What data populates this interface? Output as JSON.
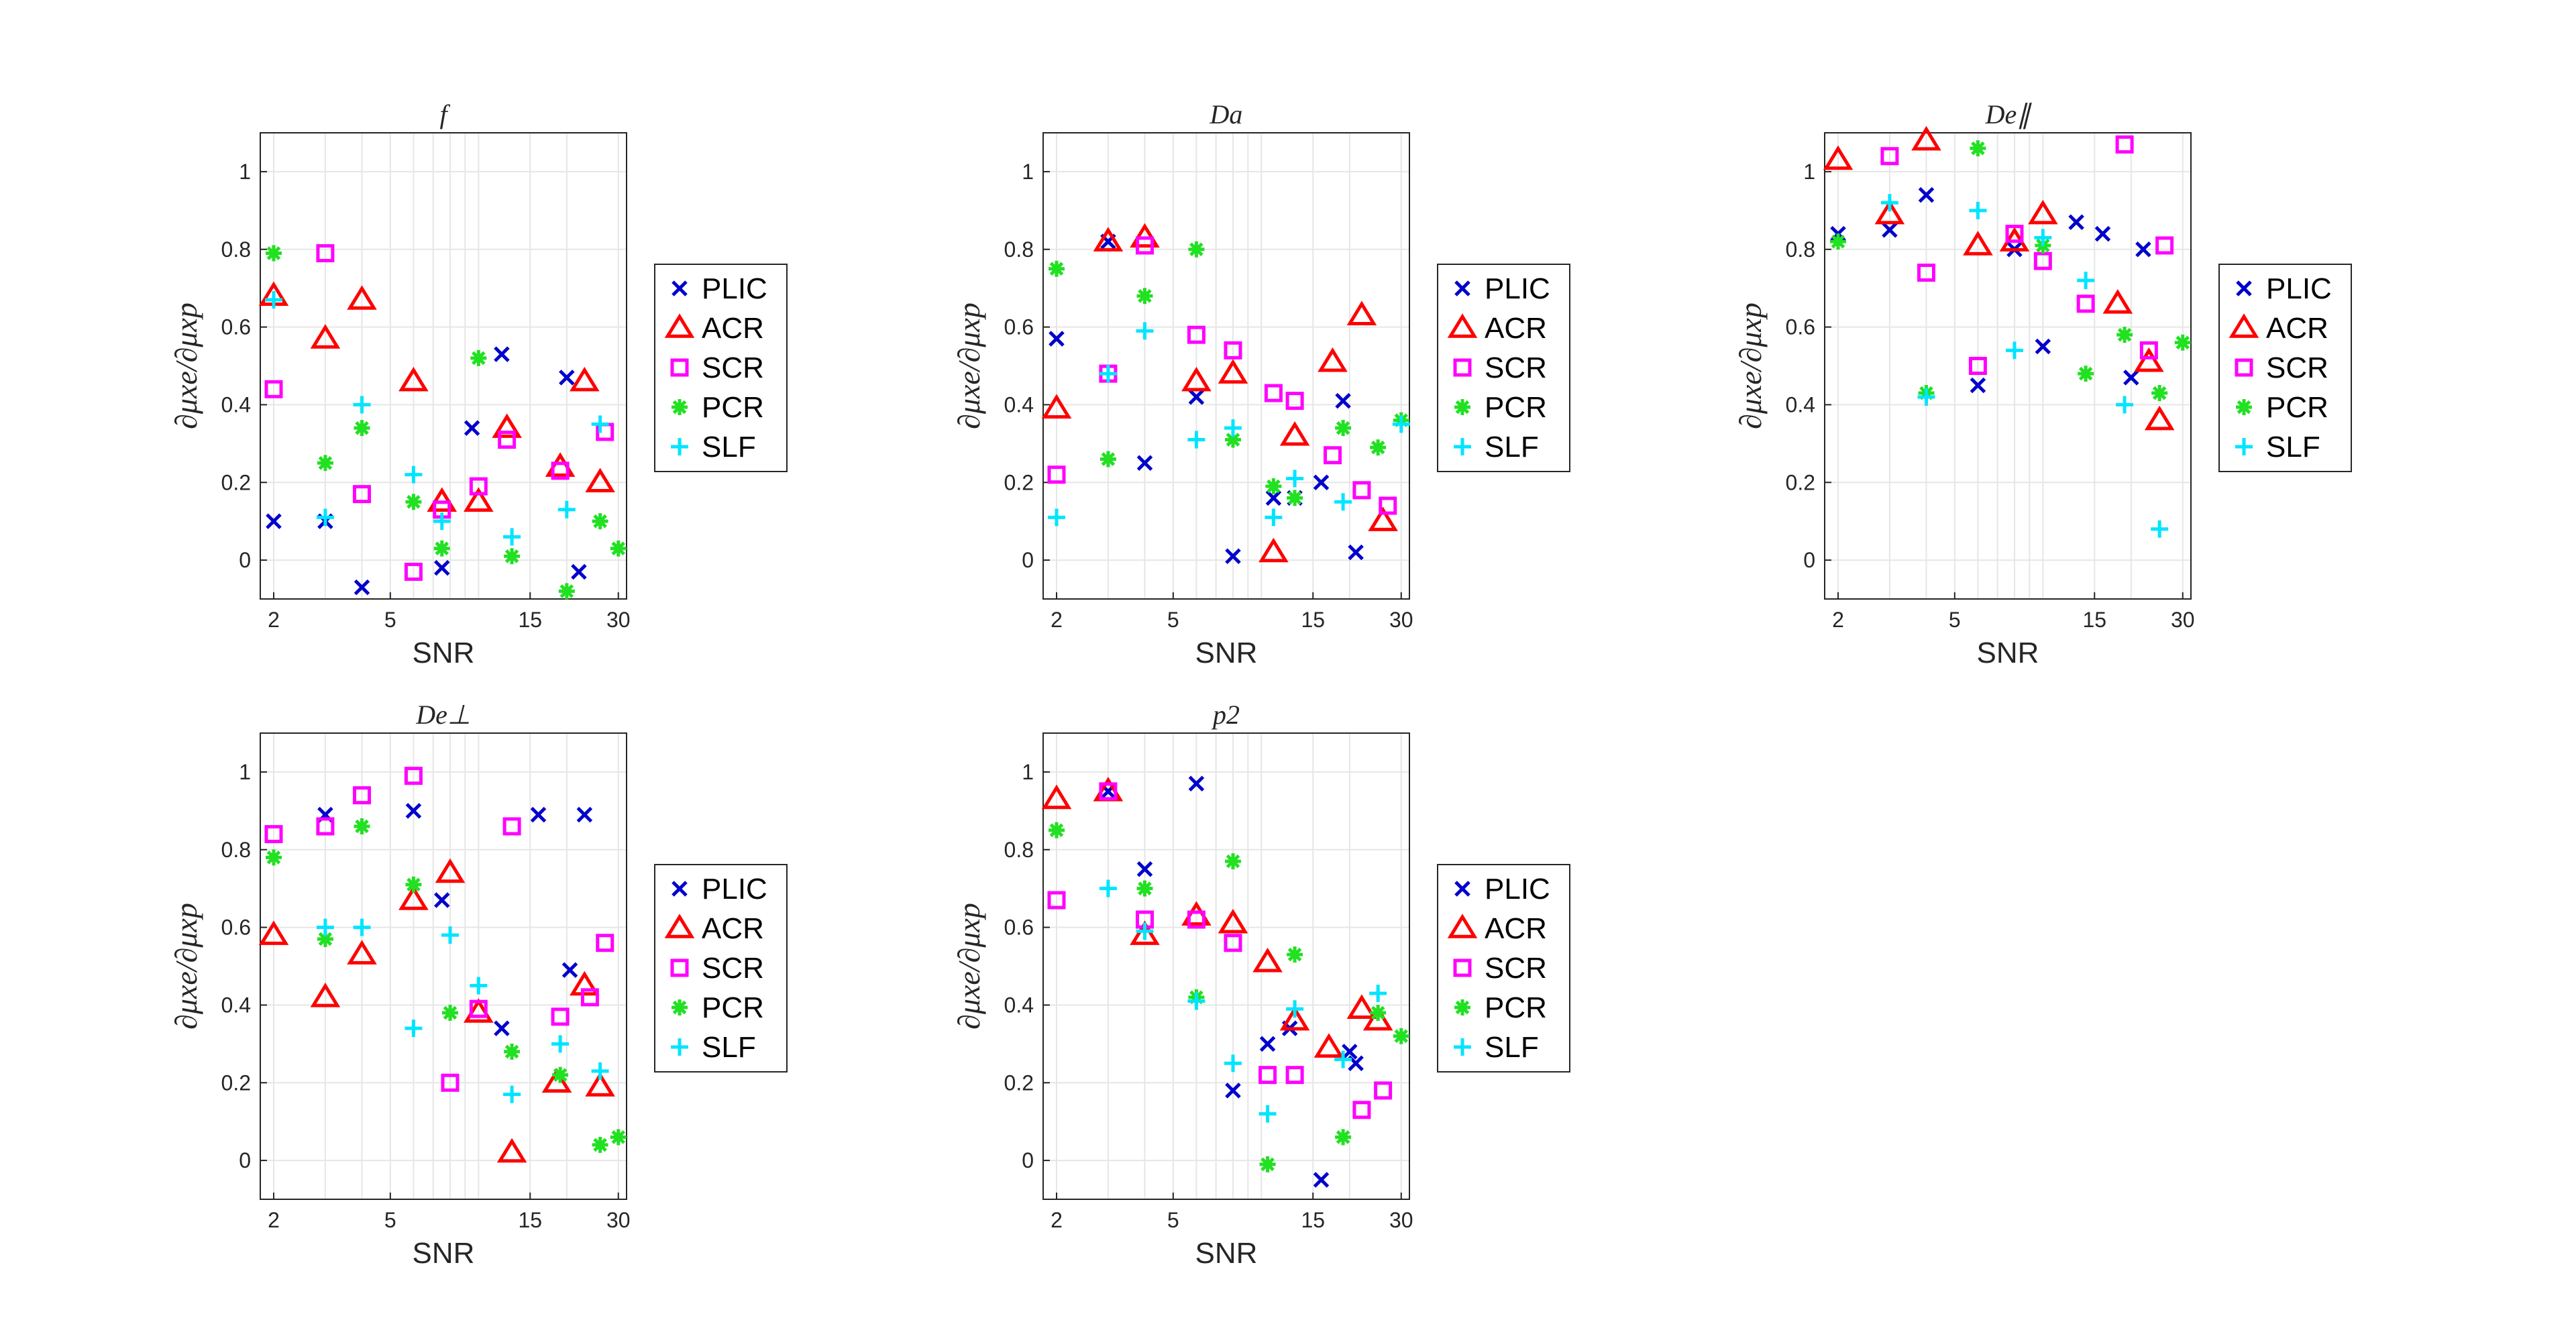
{
  "chart_data": [
    {
      "type": "scatter",
      "title": "f",
      "xlabel": "SNR",
      "ylabel": "∂μxe/∂μxp",
      "xscale": "log",
      "xlim": [
        1.8,
        32
      ],
      "ylim": [
        -0.1,
        1.1
      ],
      "xticks": [
        2,
        5,
        15,
        30
      ],
      "yticks": [
        0,
        0.2,
        0.4,
        0.6,
        0.8,
        1
      ],
      "grid": true,
      "legend_position": "right",
      "series": [
        {
          "name": "PLIC",
          "points": [
            [
              2,
              0.1
            ],
            [
              3,
              0.1
            ],
            [
              4,
              -0.07
            ],
            [
              7.5,
              -0.02
            ],
            [
              9.5,
              0.34
            ],
            [
              12,
              0.53
            ],
            [
              20,
              0.47
            ],
            [
              22,
              -0.03
            ]
          ]
        },
        {
          "name": "ACR",
          "points": [
            [
              2,
              0.68
            ],
            [
              3,
              0.57
            ],
            [
              4,
              0.67
            ],
            [
              6,
              0.46
            ],
            [
              7.5,
              0.15
            ],
            [
              10,
              0.15
            ],
            [
              12.5,
              0.34
            ],
            [
              19,
              0.24
            ],
            [
              23,
              0.46
            ],
            [
              26,
              0.2
            ]
          ]
        },
        {
          "name": "SCR",
          "points": [
            [
              2,
              0.44
            ],
            [
              3,
              0.79
            ],
            [
              4,
              0.17
            ],
            [
              6,
              -0.03
            ],
            [
              7.5,
              0.13
            ],
            [
              10,
              0.19
            ],
            [
              12.5,
              0.31
            ],
            [
              19,
              0.23
            ],
            [
              27,
              0.33
            ]
          ]
        },
        {
          "name": "PCR",
          "points": [
            [
              2,
              0.79
            ],
            [
              3,
              0.25
            ],
            [
              4,
              0.34
            ],
            [
              6,
              0.15
            ],
            [
              7.5,
              0.03
            ],
            [
              10,
              0.52
            ],
            [
              13,
              0.01
            ],
            [
              20,
              -0.08
            ],
            [
              26,
              0.1
            ],
            [
              30,
              0.03
            ]
          ]
        },
        {
          "name": "SLF",
          "points": [
            [
              2,
              0.67
            ],
            [
              3,
              0.11
            ],
            [
              4,
              0.4
            ],
            [
              6,
              0.22
            ],
            [
              7.5,
              0.1
            ],
            [
              13,
              0.06
            ],
            [
              20,
              0.13
            ],
            [
              26,
              0.35
            ]
          ]
        }
      ]
    },
    {
      "type": "scatter",
      "title": "Da",
      "xlabel": "SNR",
      "ylabel": "∂μxe/∂μxp",
      "xscale": "log",
      "xlim": [
        1.8,
        32
      ],
      "ylim": [
        -0.1,
        1.1
      ],
      "xticks": [
        2,
        5,
        15,
        30
      ],
      "yticks": [
        0,
        0.2,
        0.4,
        0.6,
        0.8,
        1
      ],
      "grid": true,
      "legend_position": "right",
      "series": [
        {
          "name": "PLIC",
          "points": [
            [
              2,
              0.57
            ],
            [
              3,
              0.82
            ],
            [
              4,
              0.25
            ],
            [
              6,
              0.42
            ],
            [
              8,
              0.01
            ],
            [
              11,
              0.16
            ],
            [
              13,
              0.16
            ],
            [
              16,
              0.2
            ],
            [
              19,
              0.41
            ],
            [
              21,
              0.02
            ]
          ]
        },
        {
          "name": "ACR",
          "points": [
            [
              2,
              0.39
            ],
            [
              3,
              0.82
            ],
            [
              4,
              0.83
            ],
            [
              6,
              0.46
            ],
            [
              8,
              0.48
            ],
            [
              11,
              0.02
            ],
            [
              13,
              0.32
            ],
            [
              17.5,
              0.51
            ],
            [
              22,
              0.63
            ],
            [
              26,
              0.1
            ]
          ]
        },
        {
          "name": "SCR",
          "points": [
            [
              2,
              0.22
            ],
            [
              3,
              0.48
            ],
            [
              4,
              0.81
            ],
            [
              6,
              0.58
            ],
            [
              8,
              0.54
            ],
            [
              11,
              0.43
            ],
            [
              13,
              0.41
            ],
            [
              17.5,
              0.27
            ],
            [
              22,
              0.18
            ],
            [
              27,
              0.14
            ]
          ]
        },
        {
          "name": "PCR",
          "points": [
            [
              2,
              0.75
            ],
            [
              3,
              0.26
            ],
            [
              4,
              0.68
            ],
            [
              6,
              0.8
            ],
            [
              8,
              0.31
            ],
            [
              11,
              0.19
            ],
            [
              13,
              0.16
            ],
            [
              19,
              0.34
            ],
            [
              25,
              0.29
            ],
            [
              30,
              0.36
            ]
          ]
        },
        {
          "name": "SLF",
          "points": [
            [
              2,
              0.11
            ],
            [
              3,
              0.48
            ],
            [
              4,
              0.59
            ],
            [
              6,
              0.31
            ],
            [
              8,
              0.34
            ],
            [
              11,
              0.11
            ],
            [
              13,
              0.21
            ],
            [
              19,
              0.15
            ],
            [
              30,
              0.35
            ]
          ]
        }
      ]
    },
    {
      "type": "scatter",
      "title": "De∥",
      "xlabel": "SNR",
      "ylabel": "∂μxe/∂μxp",
      "xscale": "log",
      "xlim": [
        1.8,
        32
      ],
      "ylim": [
        -0.1,
        1.1
      ],
      "xticks": [
        2,
        5,
        15,
        30
      ],
      "yticks": [
        0,
        0.2,
        0.4,
        0.6,
        0.8,
        1
      ],
      "grid": true,
      "legend_position": "right",
      "series": [
        {
          "name": "PLIC",
          "points": [
            [
              2,
              0.84
            ],
            [
              3,
              0.85
            ],
            [
              4,
              0.94
            ],
            [
              6,
              0.45
            ],
            [
              8,
              0.8
            ],
            [
              10,
              0.55
            ],
            [
              13,
              0.87
            ],
            [
              16,
              0.84
            ],
            [
              20,
              0.47
            ],
            [
              22,
              0.8
            ]
          ]
        },
        {
          "name": "ACR",
          "points": [
            [
              2,
              1.03
            ],
            [
              3,
              0.89
            ],
            [
              4,
              1.08
            ],
            [
              6,
              0.81
            ],
            [
              8,
              0.82
            ],
            [
              10,
              0.89
            ],
            [
              18,
              0.66
            ],
            [
              23,
              0.51
            ],
            [
              25,
              0.36
            ]
          ]
        },
        {
          "name": "SCR",
          "points": [
            [
              3,
              1.04
            ],
            [
              4,
              0.74
            ],
            [
              6,
              0.5
            ],
            [
              8,
              0.84
            ],
            [
              10,
              0.77
            ],
            [
              14,
              0.66
            ],
            [
              19,
              1.07
            ],
            [
              23,
              0.54
            ],
            [
              26,
              0.81
            ]
          ]
        },
        {
          "name": "PCR",
          "points": [
            [
              2,
              0.82
            ],
            [
              4,
              0.43
            ],
            [
              6,
              1.06
            ],
            [
              10,
              0.81
            ],
            [
              14,
              0.48
            ],
            [
              19,
              0.58
            ],
            [
              25,
              0.43
            ],
            [
              30,
              0.56
            ]
          ]
        },
        {
          "name": "SLF",
          "points": [
            [
              3,
              0.92
            ],
            [
              4,
              0.42
            ],
            [
              6,
              0.9
            ],
            [
              8,
              0.54
            ],
            [
              10,
              0.83
            ],
            [
              14,
              0.72
            ],
            [
              19,
              0.4
            ],
            [
              25,
              0.08
            ]
          ]
        }
      ]
    },
    {
      "type": "scatter",
      "title": "De⊥",
      "xlabel": "SNR",
      "ylabel": "∂μxe/∂μxp",
      "xscale": "log",
      "xlim": [
        1.8,
        32
      ],
      "ylim": [
        -0.1,
        1.1
      ],
      "xticks": [
        2,
        5,
        15,
        30
      ],
      "yticks": [
        0,
        0.2,
        0.4,
        0.6,
        0.8,
        1
      ],
      "grid": true,
      "legend_position": "right",
      "series": [
        {
          "name": "PLIC",
          "points": [
            [
              3,
              0.89
            ],
            [
              6,
              0.9
            ],
            [
              7.5,
              0.67
            ],
            [
              12,
              0.34
            ],
            [
              16,
              0.89
            ],
            [
              20.5,
              0.49
            ],
            [
              23,
              0.89
            ]
          ]
        },
        {
          "name": "ACR",
          "points": [
            [
              2,
              0.58
            ],
            [
              3,
              0.42
            ],
            [
              4,
              0.53
            ],
            [
              6,
              0.67
            ],
            [
              8,
              0.74
            ],
            [
              10,
              0.38
            ],
            [
              13,
              0.02
            ],
            [
              18.5,
              0.2
            ],
            [
              23,
              0.45
            ],
            [
              26,
              0.19
            ]
          ]
        },
        {
          "name": "SCR",
          "points": [
            [
              2,
              0.84
            ],
            [
              3,
              0.86
            ],
            [
              4,
              0.94
            ],
            [
              6,
              0.99
            ],
            [
              8,
              0.2
            ],
            [
              10,
              0.39
            ],
            [
              13,
              0.86
            ],
            [
              19,
              0.37
            ],
            [
              24,
              0.42
            ],
            [
              27,
              0.56
            ]
          ]
        },
        {
          "name": "PCR",
          "points": [
            [
              2,
              0.78
            ],
            [
              3,
              0.57
            ],
            [
              4,
              0.86
            ],
            [
              6,
              0.71
            ],
            [
              8,
              0.38
            ],
            [
              13,
              0.28
            ],
            [
              19,
              0.22
            ],
            [
              26,
              0.04
            ],
            [
              30,
              0.06
            ]
          ]
        },
        {
          "name": "SLF",
          "points": [
            [
              3,
              0.6
            ],
            [
              4,
              0.6
            ],
            [
              6,
              0.34
            ],
            [
              8,
              0.58
            ],
            [
              10,
              0.45
            ],
            [
              13,
              0.17
            ],
            [
              19,
              0.3
            ],
            [
              26,
              0.23
            ]
          ]
        }
      ]
    },
    {
      "type": "scatter",
      "title": "p2",
      "xlabel": "SNR",
      "ylabel": "∂μxe/∂μxp",
      "xscale": "log",
      "xlim": [
        1.8,
        32
      ],
      "ylim": [
        -0.1,
        1.1
      ],
      "xticks": [
        2,
        5,
        15,
        30
      ],
      "yticks": [
        0,
        0.2,
        0.4,
        0.6,
        0.8,
        1
      ],
      "grid": true,
      "legend_position": "right",
      "series": [
        {
          "name": "PLIC",
          "points": [
            [
              3,
              0.95
            ],
            [
              4,
              0.75
            ],
            [
              6,
              0.97
            ],
            [
              8,
              0.18
            ],
            [
              10.5,
              0.3
            ],
            [
              12.5,
              0.34
            ],
            [
              16,
              -0.05
            ],
            [
              20,
              0.28
            ],
            [
              21,
              0.25
            ]
          ]
        },
        {
          "name": "ACR",
          "points": [
            [
              2,
              0.93
            ],
            [
              3,
              0.95
            ],
            [
              4,
              0.58
            ],
            [
              6,
              0.63
            ],
            [
              8,
              0.61
            ],
            [
              10.5,
              0.51
            ],
            [
              13,
              0.36
            ],
            [
              17,
              0.29
            ],
            [
              22,
              0.39
            ],
            [
              25,
              0.36
            ]
          ]
        },
        {
          "name": "SCR",
          "points": [
            [
              2,
              0.67
            ],
            [
              3,
              0.95
            ],
            [
              4,
              0.62
            ],
            [
              6,
              0.62
            ],
            [
              8,
              0.56
            ],
            [
              10.5,
              0.22
            ],
            [
              13,
              0.22
            ],
            [
              22,
              0.13
            ],
            [
              26,
              0.18
            ]
          ]
        },
        {
          "name": "PCR",
          "points": [
            [
              2,
              0.85
            ],
            [
              4,
              0.7
            ],
            [
              6,
              0.42
            ],
            [
              8,
              0.77
            ],
            [
              10.5,
              -0.01
            ],
            [
              13,
              0.53
            ],
            [
              19,
              0.06
            ],
            [
              25,
              0.38
            ],
            [
              30,
              0.32
            ]
          ]
        },
        {
          "name": "SLF",
          "points": [
            [
              3,
              0.7
            ],
            [
              4,
              0.59
            ],
            [
              6,
              0.41
            ],
            [
              8,
              0.25
            ],
            [
              10.5,
              0.12
            ],
            [
              13,
              0.39
            ],
            [
              19,
              0.26
            ],
            [
              25,
              0.43
            ]
          ]
        }
      ]
    }
  ],
  "legend_items": [
    {
      "name": "PLIC",
      "marker": "x",
      "color": "#0000cc"
    },
    {
      "name": "ACR",
      "marker": "triangle",
      "color": "#ff0000"
    },
    {
      "name": "SCR",
      "marker": "square",
      "color": "#ff00ff"
    },
    {
      "name": "PCR",
      "marker": "asterisk",
      "color": "#22e022"
    },
    {
      "name": "SLF",
      "marker": "plus",
      "color": "#00e5ff"
    }
  ],
  "colors": {
    "axis": "#262626",
    "grid": "#e6e6e6",
    "background": "#ffffff"
  }
}
